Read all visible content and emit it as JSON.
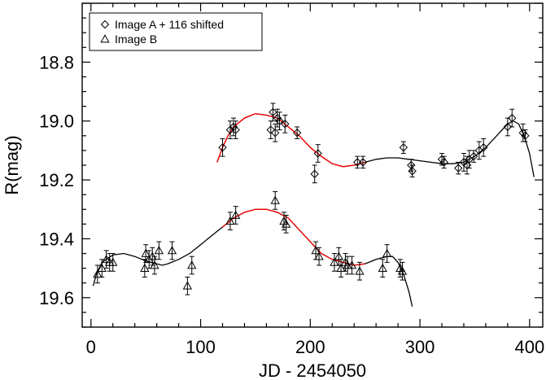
{
  "chart_data": {
    "type": "scatter",
    "xlabel": "JD - 2454050",
    "ylabel": "R(mag)",
    "xlim": [
      -8,
      412
    ],
    "ylim": [
      19.7,
      18.6
    ],
    "y_inverted": true,
    "x_ticks": [
      0,
      100,
      200,
      300,
      400
    ],
    "x_tick_labels": [
      "0",
      "100",
      "200",
      "300",
      "400"
    ],
    "y_ticks": [
      18.8,
      19.0,
      19.2,
      19.4,
      19.6
    ],
    "y_tick_labels": [
      "18.8",
      "19.0",
      "19.2",
      "19.4",
      "19.6"
    ],
    "grid": false,
    "legend_position": "top-left",
    "series": [
      {
        "name": "Image A + 116 shifted",
        "marker": "diamond",
        "points": [
          {
            "x": 120,
            "y": 19.09,
            "err": 0.03
          },
          {
            "x": 127,
            "y": 19.03,
            "err": 0.03
          },
          {
            "x": 130,
            "y": 19.02,
            "err": 0.03
          },
          {
            "x": 132,
            "y": 19.03,
            "err": 0.03
          },
          {
            "x": 164,
            "y": 19.03,
            "err": 0.03
          },
          {
            "x": 166,
            "y": 18.97,
            "err": 0.03
          },
          {
            "x": 168,
            "y": 19.04,
            "err": 0.03
          },
          {
            "x": 170,
            "y": 18.99,
            "err": 0.03
          },
          {
            "x": 172,
            "y": 19.0,
            "err": 0.03
          },
          {
            "x": 177,
            "y": 19.01,
            "err": 0.03
          },
          {
            "x": 188,
            "y": 19.04,
            "err": 0.02
          },
          {
            "x": 204,
            "y": 19.18,
            "err": 0.03
          },
          {
            "x": 207,
            "y": 19.11,
            "err": 0.03
          },
          {
            "x": 243,
            "y": 19.14,
            "err": 0.02
          },
          {
            "x": 248,
            "y": 19.14,
            "err": 0.02
          },
          {
            "x": 285,
            "y": 19.09,
            "err": 0.02
          },
          {
            "x": 292,
            "y": 19.15,
            "err": 0.02
          },
          {
            "x": 293,
            "y": 19.17,
            "err": 0.02
          },
          {
            "x": 320,
            "y": 19.13,
            "err": 0.02
          },
          {
            "x": 322,
            "y": 19.14,
            "err": 0.02
          },
          {
            "x": 335,
            "y": 19.16,
            "err": 0.02
          },
          {
            "x": 340,
            "y": 19.14,
            "err": 0.03
          },
          {
            "x": 343,
            "y": 19.15,
            "err": 0.03
          },
          {
            "x": 345,
            "y": 19.13,
            "err": 0.03
          },
          {
            "x": 349,
            "y": 19.12,
            "err": 0.02
          },
          {
            "x": 354,
            "y": 19.1,
            "err": 0.03
          },
          {
            "x": 358,
            "y": 19.09,
            "err": 0.03
          },
          {
            "x": 380,
            "y": 19.02,
            "err": 0.03
          },
          {
            "x": 384,
            "y": 18.99,
            "err": 0.03
          },
          {
            "x": 394,
            "y": 19.04,
            "err": 0.03
          },
          {
            "x": 396,
            "y": 19.05,
            "err": 0.02
          }
        ],
        "fit_curve": [
          [
            115,
            19.14
          ],
          [
            120,
            19.09
          ],
          [
            125,
            19.05
          ],
          [
            130,
            19.02
          ],
          [
            140,
            18.99
          ],
          [
            150,
            18.975
          ],
          [
            160,
            18.98
          ],
          [
            170,
            18.99
          ],
          [
            180,
            19.02
          ],
          [
            190,
            19.05
          ],
          [
            200,
            19.09
          ],
          [
            210,
            19.12
          ],
          [
            220,
            19.145
          ],
          [
            230,
            19.155
          ],
          [
            240,
            19.15
          ],
          [
            250,
            19.14
          ],
          [
            260,
            19.13
          ],
          [
            270,
            19.125
          ],
          [
            280,
            19.125
          ],
          [
            290,
            19.13
          ],
          [
            300,
            19.135
          ],
          [
            310,
            19.14
          ],
          [
            320,
            19.145
          ],
          [
            330,
            19.145
          ],
          [
            340,
            19.14
          ],
          [
            350,
            19.12
          ],
          [
            360,
            19.09
          ],
          [
            370,
            19.05
          ],
          [
            380,
            19.01
          ],
          [
            385,
            19.0
          ],
          [
            390,
            19.01
          ],
          [
            395,
            19.05
          ],
          [
            400,
            19.11
          ],
          [
            404,
            19.19
          ]
        ],
        "fit_red_range": [
          115,
          250
        ]
      },
      {
        "name": "Image B",
        "marker": "triangle",
        "points": [
          {
            "x": 6,
            "y": 19.52,
            "err": 0.03
          },
          {
            "x": 10,
            "y": 19.5,
            "err": 0.03
          },
          {
            "x": 14,
            "y": 19.47,
            "err": 0.03
          },
          {
            "x": 17,
            "y": 19.48,
            "err": 0.03
          },
          {
            "x": 20,
            "y": 19.48,
            "err": 0.03
          },
          {
            "x": 49,
            "y": 19.5,
            "err": 0.03
          },
          {
            "x": 50,
            "y": 19.45,
            "err": 0.03
          },
          {
            "x": 53,
            "y": 19.47,
            "err": 0.03
          },
          {
            "x": 56,
            "y": 19.46,
            "err": 0.03
          },
          {
            "x": 58,
            "y": 19.49,
            "err": 0.03
          },
          {
            "x": 62,
            "y": 19.44,
            "err": 0.03
          },
          {
            "x": 74,
            "y": 19.44,
            "err": 0.03
          },
          {
            "x": 88,
            "y": 19.56,
            "err": 0.03
          },
          {
            "x": 92,
            "y": 19.49,
            "err": 0.03
          },
          {
            "x": 127,
            "y": 19.34,
            "err": 0.03
          },
          {
            "x": 132,
            "y": 19.32,
            "err": 0.03
          },
          {
            "x": 168,
            "y": 19.27,
            "err": 0.03
          },
          {
            "x": 176,
            "y": 19.34,
            "err": 0.03
          },
          {
            "x": 178,
            "y": 19.35,
            "err": 0.03
          },
          {
            "x": 205,
            "y": 19.44,
            "err": 0.03
          },
          {
            "x": 208,
            "y": 19.46,
            "err": 0.03
          },
          {
            "x": 222,
            "y": 19.48,
            "err": 0.03
          },
          {
            "x": 226,
            "y": 19.46,
            "err": 0.03
          },
          {
            "x": 228,
            "y": 19.5,
            "err": 0.03
          },
          {
            "x": 232,
            "y": 19.48,
            "err": 0.03
          },
          {
            "x": 234,
            "y": 19.49,
            "err": 0.03
          },
          {
            "x": 238,
            "y": 19.49,
            "err": 0.03
          },
          {
            "x": 245,
            "y": 19.51,
            "err": 0.03
          },
          {
            "x": 266,
            "y": 19.5,
            "err": 0.03
          },
          {
            "x": 270,
            "y": 19.45,
            "err": 0.03
          },
          {
            "x": 282,
            "y": 19.5,
            "err": 0.03
          },
          {
            "x": 284,
            "y": 19.51,
            "err": 0.03
          }
        ],
        "fit_curve": [
          [
            2,
            19.56
          ],
          [
            5,
            19.52
          ],
          [
            10,
            19.48
          ],
          [
            20,
            19.455
          ],
          [
            30,
            19.45
          ],
          [
            40,
            19.46
          ],
          [
            50,
            19.475
          ],
          [
            60,
            19.485
          ],
          [
            65,
            19.49
          ],
          [
            70,
            19.485
          ],
          [
            80,
            19.47
          ],
          [
            90,
            19.45
          ],
          [
            100,
            19.42
          ],
          [
            110,
            19.39
          ],
          [
            120,
            19.36
          ],
          [
            130,
            19.33
          ],
          [
            140,
            19.31
          ],
          [
            150,
            19.3
          ],
          [
            160,
            19.3
          ],
          [
            170,
            19.31
          ],
          [
            180,
            19.33
          ],
          [
            190,
            19.37
          ],
          [
            200,
            19.41
          ],
          [
            210,
            19.45
          ],
          [
            220,
            19.47
          ],
          [
            230,
            19.48
          ],
          [
            240,
            19.49
          ],
          [
            250,
            19.485
          ],
          [
            260,
            19.47
          ],
          [
            270,
            19.46
          ],
          [
            275,
            19.46
          ],
          [
            280,
            19.48
          ],
          [
            285,
            19.52
          ],
          [
            290,
            19.58
          ],
          [
            293,
            19.63
          ]
        ],
        "fit_red_range": [
          120,
          250
        ]
      }
    ]
  }
}
